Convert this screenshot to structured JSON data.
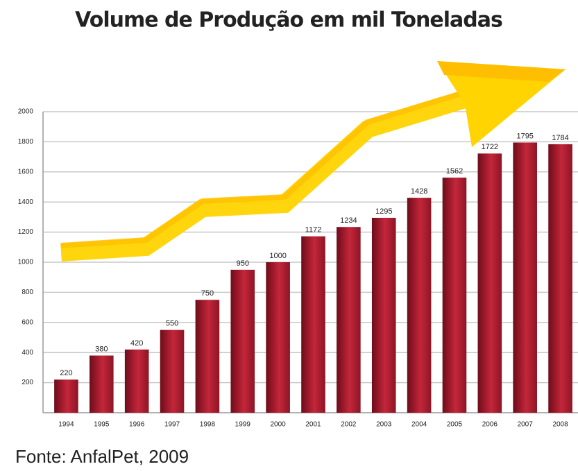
{
  "chart_data": {
    "type": "bar",
    "title": "Volume de Produção em mil Toneladas",
    "source": "Fonte: AnfalPet, 2009",
    "categories": [
      "1994",
      "1995",
      "1996",
      "1997",
      "1998",
      "1999",
      "2000",
      "2001",
      "2002",
      "2003",
      "2004",
      "2005",
      "2006",
      "2007",
      "2008"
    ],
    "values": [
      220,
      380,
      420,
      550,
      750,
      950,
      1000,
      1172,
      1234,
      1295,
      1428,
      1562,
      1722,
      1795,
      1784
    ],
    "color": "#b01e30",
    "ylim": [
      0,
      2000
    ],
    "yticks": [
      200,
      400,
      600,
      800,
      1000,
      1200,
      1400,
      1600,
      1800,
      2000
    ],
    "grid": true
  }
}
